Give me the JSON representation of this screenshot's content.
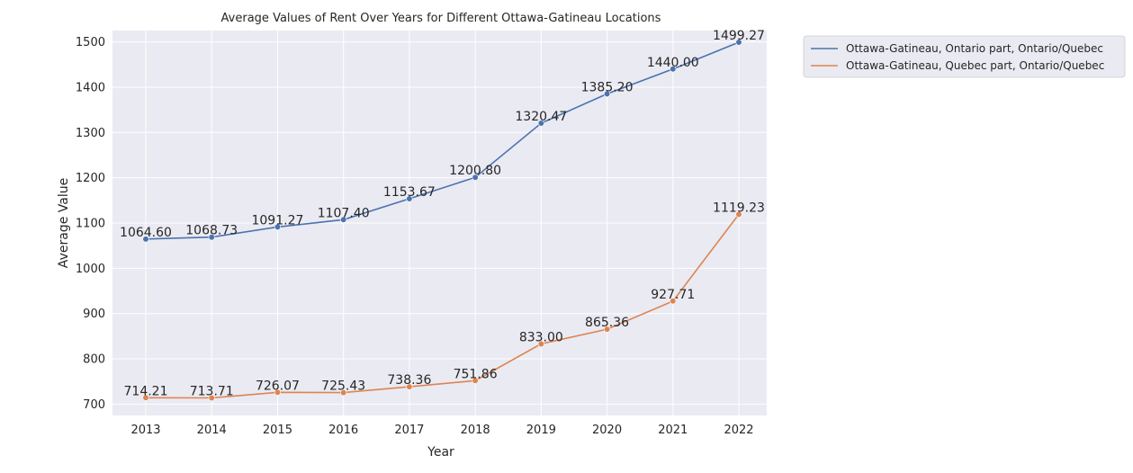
{
  "chart_data": {
    "type": "line",
    "title": "Average Values of Rent Over Years for Different Ottawa-Gatineau Locations",
    "xlabel": "Year",
    "ylabel": "Average Value",
    "x": [
      "2013",
      "2014",
      "2015",
      "2016",
      "2017",
      "2018",
      "2019",
      "2020",
      "2021",
      "2022"
    ],
    "ylim": [
      675,
      1525
    ],
    "yticks": [
      700,
      800,
      900,
      1000,
      1100,
      1200,
      1300,
      1400,
      1500
    ],
    "grid": true,
    "legend_position": "outside top-right",
    "series": [
      {
        "name": "Ottawa-Gatineau, Ontario part, Ontario/Quebec",
        "color": "#4c72b0",
        "values": [
          1064.6,
          1068.73,
          1091.27,
          1107.4,
          1153.67,
          1200.8,
          1320.47,
          1385.2,
          1440.0,
          1499.27
        ],
        "labels": [
          "1064.60",
          "1068.73",
          "1091.27",
          "1107.40",
          "1153.67",
          "1200.80",
          "1320.47",
          "1385.20",
          "1440.00",
          "1499.27"
        ]
      },
      {
        "name": "Ottawa-Gatineau, Quebec part, Ontario/Quebec",
        "color": "#dd8452",
        "values": [
          714.21,
          713.71,
          726.07,
          725.43,
          738.36,
          751.86,
          833.0,
          865.36,
          927.71,
          1119.23
        ],
        "labels": [
          "714.21",
          "713.71",
          "726.07",
          "725.43",
          "738.36",
          "751.86",
          "833.00",
          "865.36",
          "927.71",
          "1119.23"
        ]
      }
    ]
  }
}
